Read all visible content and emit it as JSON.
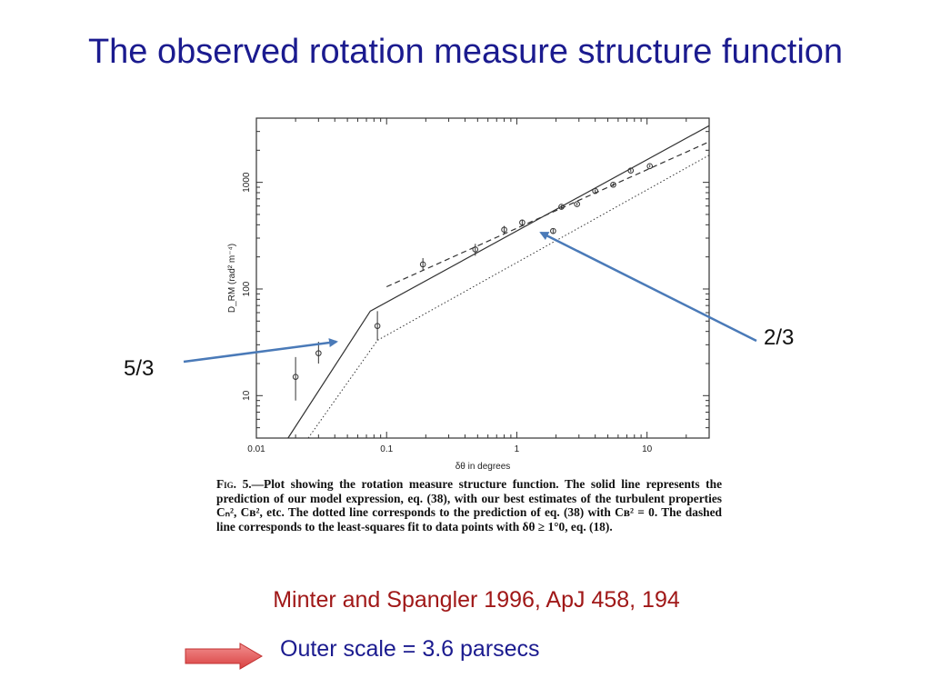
{
  "slide": {
    "title": "The observed rotation measure structure function",
    "citation": "Minter and Spangler 1996, ApJ 458, 194",
    "outer_scale_text": "Outer scale = 3.6 parsecs",
    "annotations": [
      {
        "label": "5/3"
      },
      {
        "label": "2/3"
      }
    ],
    "colors": {
      "title": "#1b1b8f",
      "citation": "#a01818",
      "annotation_arrow": "#4a7ab8",
      "block_arrow": "#e05050"
    }
  },
  "caption": {
    "fig_label": "Fig. 5.",
    "text": "—Plot showing the rotation measure structure function. The solid line represents the prediction of our model expression, eq. (38), with our best estimates of the turbulent properties Cₙ², Cʙ², etc. The dotted line corresponds to the prediction of eq. (38) with Cʙ² = 0. The dashed line corresponds to the least-squares fit to data points with δθ ≥ 1°0, eq. (18)."
  },
  "chart_data": {
    "type": "scatter",
    "xscale": "log",
    "yscale": "log",
    "xlim": [
      0.01,
      30
    ],
    "ylim": [
      4,
      4000
    ],
    "xlabel": "δθ in degrees",
    "ylabel": "D_RM (rad² m⁻⁴)",
    "x_ticks": [
      {
        "value": 0.01,
        "label": "0.01"
      },
      {
        "value": 0.1,
        "label": "0.1"
      },
      {
        "value": 1,
        "label": "1"
      },
      {
        "value": 10,
        "label": "10"
      }
    ],
    "y_ticks": [
      {
        "value": 10,
        "label": "10"
      },
      {
        "value": 100,
        "label": "100"
      },
      {
        "value": 1000,
        "label": "1000"
      }
    ],
    "points": [
      {
        "x": 0.02,
        "y": 15,
        "ylo": 9,
        "yhi": 23
      },
      {
        "x": 0.03,
        "y": 25,
        "ylo": 20,
        "yhi": 32
      },
      {
        "x": 0.085,
        "y": 45,
        "ylo": 33,
        "yhi": 62
      },
      {
        "x": 0.19,
        "y": 170,
        "ylo": 148,
        "yhi": 195
      },
      {
        "x": 0.48,
        "y": 235,
        "ylo": 205,
        "yhi": 265
      },
      {
        "x": 0.8,
        "y": 360,
        "ylo": 330,
        "yhi": 390
      },
      {
        "x": 1.1,
        "y": 420,
        "ylo": 395,
        "yhi": 445
      },
      {
        "x": 1.9,
        "y": 350,
        "ylo": 335,
        "yhi": 365
      },
      {
        "x": 2.2,
        "y": 590,
        "ylo": 570,
        "yhi": 610
      },
      {
        "x": 2.9,
        "y": 625,
        "ylo": 605,
        "yhi": 645
      },
      {
        "x": 4,
        "y": 830,
        "ylo": 800,
        "yhi": 860
      },
      {
        "x": 5.5,
        "y": 950,
        "ylo": 920,
        "yhi": 980
      },
      {
        "x": 7.5,
        "y": 1290,
        "ylo": 1250,
        "yhi": 1330
      },
      {
        "x": 10.5,
        "y": 1420,
        "ylo": 1380,
        "yhi": 1460
      }
    ],
    "series": [
      {
        "style": "solid",
        "x": [
          0.0175,
          0.075,
          30
        ],
        "y": [
          4,
          62,
          3400
        ]
      },
      {
        "style": "dotted",
        "x": [
          0.025,
          0.085,
          30
        ],
        "y": [
          4,
          33,
          1800
        ]
      },
      {
        "style": "dashed",
        "x": [
          0.1,
          30
        ],
        "y": [
          105,
          2400
        ]
      }
    ]
  }
}
